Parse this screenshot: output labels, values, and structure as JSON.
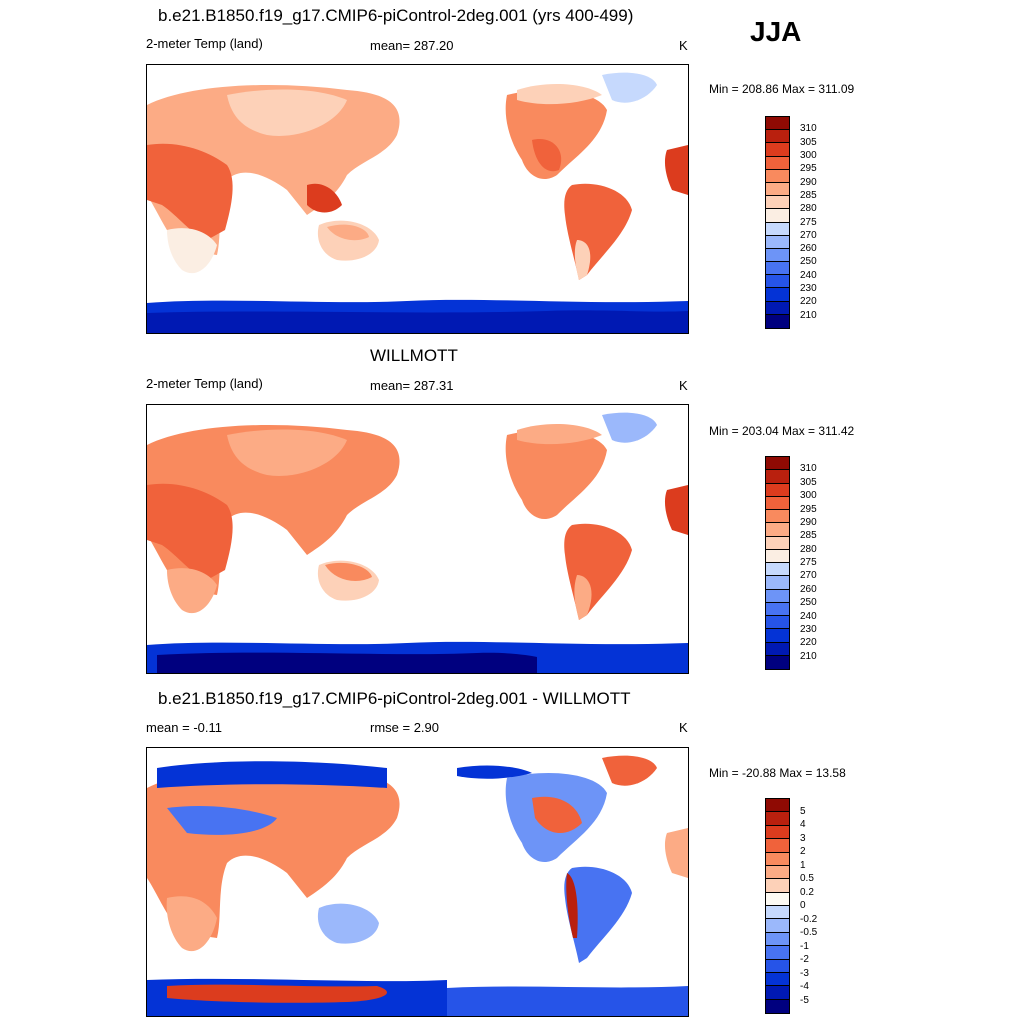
{
  "season": "JJA",
  "colors": {
    "temp": [
      "#00007f",
      "#0019b3",
      "#0433d6",
      "#2654e8",
      "#4873f2",
      "#6d94f7",
      "#9bb8fb",
      "#c6d9fd",
      "#fbeee3",
      "#fdd1b8",
      "#fcab85",
      "#f98a5e",
      "#f0623b",
      "#dc3c1e",
      "#b9200e",
      "#8f0a03"
    ],
    "diff": [
      "#00007f",
      "#0019b3",
      "#0433d6",
      "#2654e8",
      "#4873f2",
      "#6d94f7",
      "#9bb8fb",
      "#c6d9fd",
      "#fdfaf3",
      "#fdd1b8",
      "#fcab85",
      "#f98a5e",
      "#f0623b",
      "#dc3c1e",
      "#b9200e",
      "#8f0a03"
    ]
  },
  "panels": [
    {
      "title": "b.e21.B1850.f19_g17.CMIP6-piControl-2deg.001 (yrs 400-499)",
      "left_label": "2-meter Temp (land)",
      "center_label": "mean= 287.20",
      "units": "K",
      "range_text": "Min = 208.86 Max = 311.09",
      "colorbar_labels": [
        "310",
        "305",
        "300",
        "295",
        "290",
        "285",
        "280",
        "275",
        "270",
        "260",
        "250",
        "240",
        "230",
        "220",
        "210"
      ]
    },
    {
      "title": "WILLMOTT",
      "left_label": "2-meter Temp (land)",
      "center_label": "mean= 287.31",
      "units": "K",
      "range_text": "Min = 203.04 Max = 311.42",
      "colorbar_labels": [
        "310",
        "305",
        "300",
        "295",
        "290",
        "285",
        "280",
        "275",
        "270",
        "260",
        "250",
        "240",
        "230",
        "220",
        "210"
      ]
    },
    {
      "title": "b.e21.B1850.f19_g17.CMIP6-piControl-2deg.001 - WILLMOTT",
      "left_label": "mean =  -0.11",
      "center_label": "rmse =   2.90",
      "units": "K",
      "range_text": "Min = -20.88 Max =  13.58",
      "colorbar_labels": [
        "5",
        "4",
        "3",
        "2",
        "1",
        "0.5",
        "0.2",
        "0",
        "-0.2",
        "-0.5",
        "-1",
        "-2",
        "-3",
        "-4",
        "-5"
      ]
    }
  ]
}
